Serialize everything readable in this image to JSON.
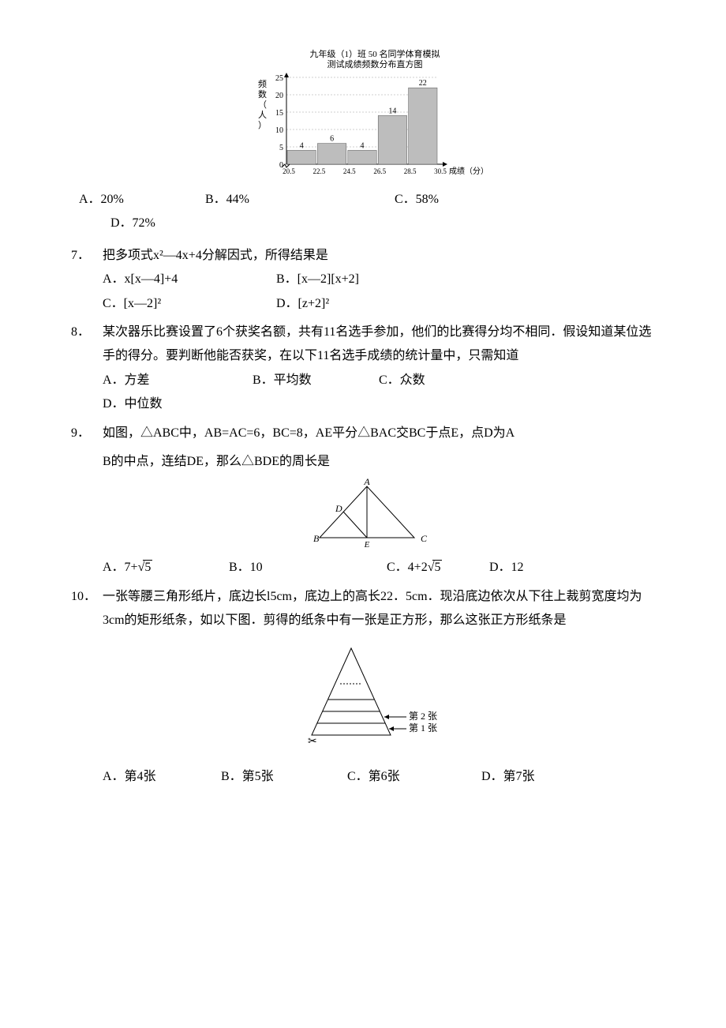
{
  "chart6": {
    "title_line1": "九年级（1）班 50 名同学体育模拟",
    "title_line2": "测试成绩频数分布直方图",
    "y_label": "频数（人）",
    "x_label": "成绩（分）",
    "x_ticks": [
      "20.5",
      "22.5",
      "24.5",
      "26.5",
      "28.5",
      "30.5"
    ],
    "y_ticks": [
      "0",
      "5",
      "10",
      "15",
      "20",
      "25"
    ],
    "bars": [
      {
        "value": 4,
        "label": "4",
        "color": "#bdbdbd"
      },
      {
        "value": 6,
        "label": "6",
        "color": "#bdbdbd"
      },
      {
        "value": 4,
        "label": "4",
        "color": "#bdbdbd"
      },
      {
        "value": 14,
        "label": "14",
        "color": "#bdbdbd"
      },
      {
        "value": 22,
        "label": "22",
        "color": "#bdbdbd"
      }
    ],
    "axis_color": "#000000",
    "grid_color": "#cfcfcf",
    "bg": "#ffffff"
  },
  "q6_options": {
    "A": "A．20%",
    "B": "B．44%",
    "C": "C．58%",
    "D": "D．72%"
  },
  "q7": {
    "num": "7．",
    "text": "把多项式x²―4x+4分解因式，所得结果是",
    "A": "A．x[x―4]+4",
    "B": "B．[x―2][x+2]",
    "C": "C．[x―2]²",
    "D": "D．[z+2]²"
  },
  "q8": {
    "num": "8．",
    "text": "某次器乐比赛设置了6个获奖名额，共有11名选手参加，他们的比赛得分均不相同．假设知道某位选手的得分。要判断他能否获奖，在以下11名选手成绩的统计量中，只需知道",
    "A": "A．方差",
    "B": "B．平均数",
    "C": "C．众数",
    "D": "D．中位数"
  },
  "q9": {
    "num": "9．",
    "text1": "如图，△ABC中，AB=AC=6，BC=8，AE平分△BAC交BC于点E，点D为A",
    "text2": "B的中点，连结DE，那么△BDE的周长是",
    "A_pre": "A．7+",
    "A_rad": "5",
    "B": "B．10",
    "C_pre": "C．4+2",
    "C_rad": "5",
    "D": "D．12",
    "fig": {
      "A": "A",
      "B": "B",
      "C": "C",
      "D": "D",
      "E": "E"
    }
  },
  "q10": {
    "num": "10．",
    "text": "一张等腰三角形纸片，底边长l5cm，底边上的高长22．5cm．现沿底边依次从下往上裁剪宽度均为3cm的矩形纸条，如以下图．剪得的纸条中有一张是正方形，那么这张正方形纸条是",
    "strip1": "第 1 张",
    "strip2": "第 2 张",
    "A": "A．第4张",
    "B": "B．第5张",
    "C": "C．第6张",
    "D": "D．第7张"
  }
}
